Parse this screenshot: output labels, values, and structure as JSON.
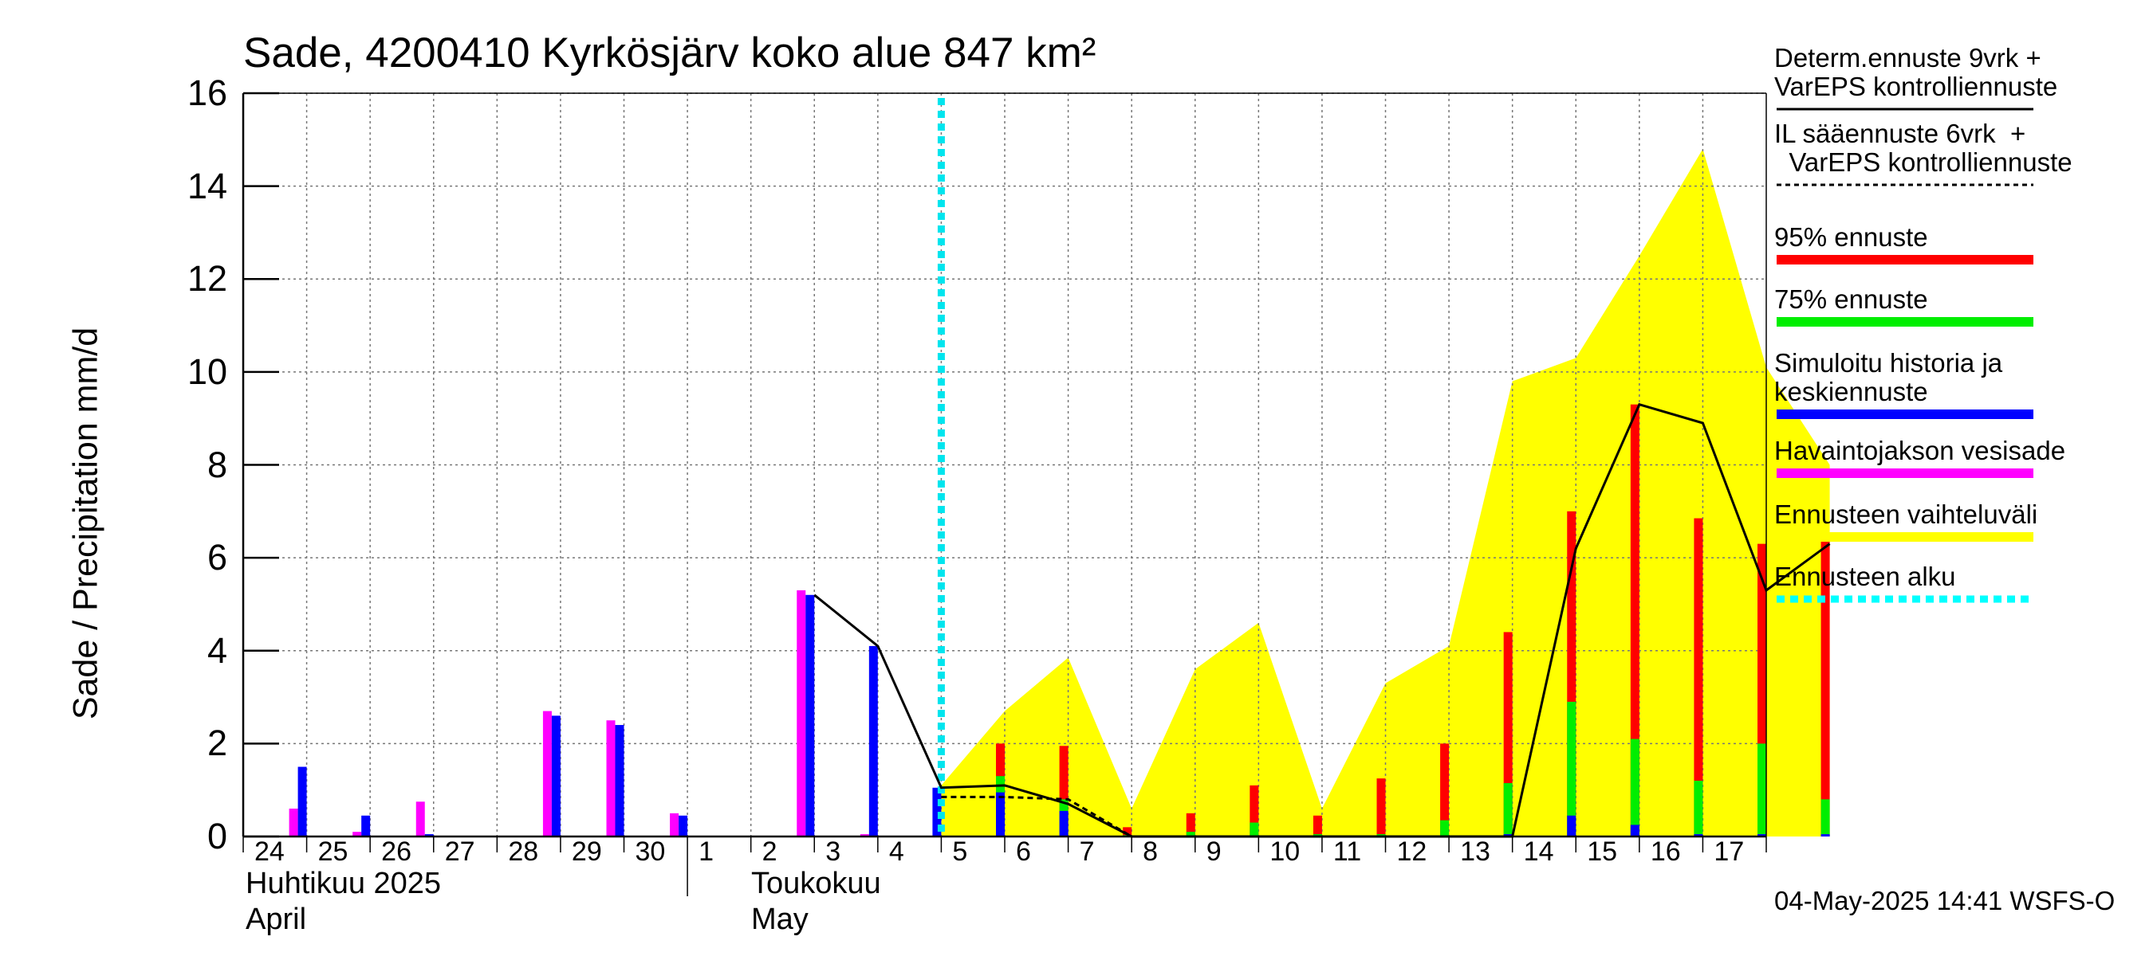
{
  "title": "Sade, 4200410 Kyrkösjärv koko alue 847 km²",
  "ylabel": "Sade / Precipitation   mm/d",
  "months": [
    {
      "line1": "Huhtikuu  2025",
      "line2": "April"
    },
    {
      "line1": "Toukokuu",
      "line2": "May"
    }
  ],
  "footer": "04-May-2025 14:41 WSFS-O",
  "legend": [
    {
      "label": "Determ.ennuste 9vrk +\nVarEPS kontrolliennuste",
      "style": "solid",
      "color": "#000000"
    },
    {
      "label": "IL sääennuste 6vrk  +\n  VarEPS kontrolliennuste",
      "style": "dashed",
      "color": "#000000"
    },
    {
      "label": "95% ennuste",
      "style": "bar",
      "color": "#ff0000"
    },
    {
      "label": "75% ennuste",
      "style": "bar",
      "color": "#00ee00"
    },
    {
      "label": "Simuloitu historia ja\nkeskiennuste",
      "style": "bar",
      "color": "#0000ff"
    },
    {
      "label": "Havaintojakson vesisade",
      "style": "bar",
      "color": "#ff00ff"
    },
    {
      "label": "Ennusteen vaihteluväli",
      "style": "bar",
      "color": "#ffff00"
    },
    {
      "label": "Ennusteen alku",
      "style": "dotted",
      "color": "#00ffff"
    }
  ],
  "chart_data": {
    "type": "bar",
    "ylim": [
      0,
      16
    ],
    "yticks": [
      0,
      2,
      4,
      6,
      8,
      10,
      12,
      14,
      16
    ],
    "x_range": [
      "2025-04-24",
      "2025-05-18"
    ],
    "x_ticks": [
      "24",
      "25",
      "26",
      "27",
      "28",
      "29",
      "30",
      "1",
      "2",
      "3",
      "4",
      "5",
      "6",
      "7",
      "8",
      "9",
      "10",
      "11",
      "12",
      "13",
      "14",
      "15",
      "16",
      "17"
    ],
    "grid": true,
    "forecast_start": "2025-05-04",
    "history": [
      {
        "date": "2025-04-24",
        "observed": 0.6,
        "simulated": 1.5
      },
      {
        "date": "2025-04-25",
        "observed": 0.1,
        "simulated": 0.45
      },
      {
        "date": "2025-04-26",
        "observed": 0.75,
        "simulated": 0.05
      },
      {
        "date": "2025-04-28",
        "observed": 2.7,
        "simulated": 2.6
      },
      {
        "date": "2025-04-29",
        "observed": 2.5,
        "simulated": 2.4
      },
      {
        "date": "2025-04-30",
        "observed": 0.5,
        "simulated": 0.45
      },
      {
        "date": "2025-05-02",
        "observed": 5.3,
        "simulated": 5.2
      },
      {
        "date": "2025-05-03",
        "observed": 0.05,
        "simulated": 4.1
      },
      {
        "date": "2025-05-04",
        "observed": 0.0,
        "simulated": 1.05
      }
    ],
    "forecast_bars": [
      {
        "date": "2025-05-05",
        "median": 0.95,
        "p75": 1.3,
        "p95": 2.0
      },
      {
        "date": "2025-05-06",
        "median": 0.55,
        "p75": 0.8,
        "p95": 1.95
      },
      {
        "date": "2025-05-07",
        "median": 0.0,
        "p75": 0.03,
        "p95": 0.2
      },
      {
        "date": "2025-05-08",
        "median": 0.0,
        "p75": 0.1,
        "p95": 0.5
      },
      {
        "date": "2025-05-09",
        "median": 0.0,
        "p75": 0.3,
        "p95": 1.1
      },
      {
        "date": "2025-05-10",
        "median": 0.0,
        "p75": 0.05,
        "p95": 0.45
      },
      {
        "date": "2025-05-11",
        "median": 0.0,
        "p75": 0.05,
        "p95": 1.25
      },
      {
        "date": "2025-05-12",
        "median": 0.0,
        "p75": 0.35,
        "p95": 2.0
      },
      {
        "date": "2025-05-13",
        "median": 0.05,
        "p75": 1.15,
        "p95": 4.4
      },
      {
        "date": "2025-05-14",
        "median": 0.45,
        "p75": 2.9,
        "p95": 7.0
      },
      {
        "date": "2025-05-15",
        "median": 0.25,
        "p75": 2.1,
        "p95": 9.3
      },
      {
        "date": "2025-05-16",
        "median": 0.05,
        "p75": 1.2,
        "p95": 6.85
      },
      {
        "date": "2025-05-17",
        "median": 0.05,
        "p75": 2.0,
        "p95": 6.3
      },
      {
        "date": "2025-05-18",
        "median": 0.05,
        "p75": 0.8,
        "p95": 6.35
      }
    ],
    "range_band": [
      {
        "date": "2025-05-04",
        "low": 0,
        "high": 1.1
      },
      {
        "date": "2025-05-05",
        "low": 0,
        "high": 2.7
      },
      {
        "date": "2025-05-06",
        "low": 0,
        "high": 3.85
      },
      {
        "date": "2025-05-07",
        "low": 0,
        "high": 0.6
      },
      {
        "date": "2025-05-08",
        "low": 0,
        "high": 3.6
      },
      {
        "date": "2025-05-09",
        "low": 0,
        "high": 4.6
      },
      {
        "date": "2025-05-10",
        "low": 0,
        "high": 0.6
      },
      {
        "date": "2025-05-11",
        "low": 0,
        "high": 3.3
      },
      {
        "date": "2025-05-12",
        "low": 0,
        "high": 4.1
      },
      {
        "date": "2025-05-13",
        "low": 0,
        "high": 9.8
      },
      {
        "date": "2025-05-14",
        "low": 0,
        "high": 10.3
      },
      {
        "date": "2025-05-15",
        "low": 0,
        "high": 12.5
      },
      {
        "date": "2025-05-16",
        "low": 0,
        "high": 14.8
      },
      {
        "date": "2025-05-17",
        "low": 0,
        "high": 10.1
      },
      {
        "date": "2025-05-18",
        "low": 0,
        "high": 8.0
      }
    ],
    "deterministic_line": [
      {
        "date": "2025-05-02",
        "value": 5.2
      },
      {
        "date": "2025-05-03",
        "value": 4.1
      },
      {
        "date": "2025-05-04",
        "value": 1.05
      },
      {
        "date": "2025-05-05",
        "value": 1.1
      },
      {
        "date": "2025-05-06",
        "value": 0.7
      },
      {
        "date": "2025-05-07",
        "value": 0.0
      },
      {
        "date": "2025-05-08",
        "value": 0.0
      },
      {
        "date": "2025-05-09",
        "value": 0.0
      },
      {
        "date": "2025-05-10",
        "value": 0.0
      },
      {
        "date": "2025-05-11",
        "value": 0.0
      },
      {
        "date": "2025-05-12",
        "value": 0.0
      },
      {
        "date": "2025-05-13",
        "value": 0.0
      },
      {
        "date": "2025-05-14",
        "value": 6.2
      },
      {
        "date": "2025-05-15",
        "value": 9.3
      },
      {
        "date": "2025-05-16",
        "value": 8.9
      },
      {
        "date": "2025-05-17",
        "value": 5.3
      },
      {
        "date": "2025-05-18",
        "value": 6.3
      }
    ],
    "il_dashed_line": [
      {
        "date": "2025-05-04",
        "value": 0.85
      },
      {
        "date": "2025-05-05",
        "value": 0.85
      },
      {
        "date": "2025-05-06",
        "value": 0.8
      },
      {
        "date": "2025-05-07",
        "value": 0.0
      }
    ]
  }
}
